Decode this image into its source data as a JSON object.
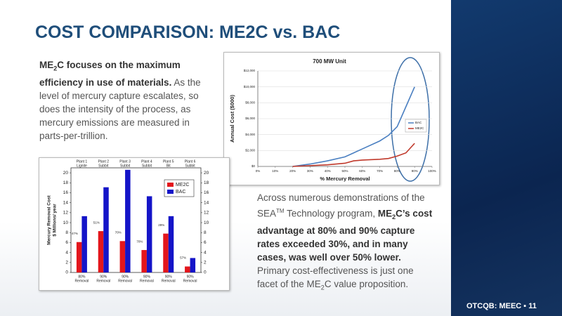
{
  "title": "COST COMPARISON: ME2C vs. BAC",
  "intro": [
    {
      "text": "ME",
      "style": "bold"
    },
    {
      "text": "2",
      "style": "bold-sub"
    },
    {
      "text": "C focuses on the maximum efficiency in use of materials.",
      "style": "bold"
    },
    {
      "text": " As the level of mercury capture escalates, so does the intensity of the process, as mercury emissions are measured in parts-per-trillion.",
      "style": "normal"
    }
  ],
  "summary": [
    {
      "text": "Across numerous demonstrations of the SEA",
      "style": "normal"
    },
    {
      "text": "TM",
      "style": "sup"
    },
    {
      "text": " Technology program, ",
      "style": "normal"
    },
    {
      "text": "ME",
      "style": "bold"
    },
    {
      "text": "2",
      "style": "bold-sub"
    },
    {
      "text": "C’s cost advantage at 80% and 90% capture rates exceeded 30%, and in many cases, was well over 50% lower.",
      "style": "bold"
    },
    {
      "text": " Primary cost-effectiveness is just one facet of the ME",
      "style": "normal"
    },
    {
      "text": "2",
      "style": "sub"
    },
    {
      "text": "C value proposition.",
      "style": "normal"
    }
  ],
  "footer": {
    "ticker": "OTCQB: MEEC",
    "page": "11"
  },
  "chart_data": [
    {
      "type": "line",
      "title": "700 MW Unit",
      "xlabel": "% Mercury Removal",
      "ylabel": "Annual Cost ($000)",
      "x": [
        20,
        30,
        40,
        50,
        55,
        60,
        70,
        75,
        80,
        85,
        90
      ],
      "series": [
        {
          "name": "BAC",
          "color": "#4a7fc1",
          "values": [
            0,
            300,
            700,
            1200,
            1700,
            2200,
            3200,
            3900,
            5000,
            7500,
            10000
          ]
        },
        {
          "name": "ME2C",
          "color": "#c0392b",
          "values": [
            0,
            100,
            200,
            400,
            700,
            800,
            900,
            1000,
            1300,
            1700,
            2900
          ]
        }
      ],
      "xlim": [
        0,
        100
      ],
      "xticks": [
        {
          "value": 0,
          "label": "0%"
        },
        {
          "value": 10,
          "label": "10%"
        },
        {
          "value": 20,
          "label": "20%"
        },
        {
          "value": 30,
          "label": "30%"
        },
        {
          "value": 40,
          "label": "40%"
        },
        {
          "value": 50,
          "label": "50%"
        },
        {
          "value": 60,
          "label": "60%"
        },
        {
          "value": 70,
          "label": "70%"
        },
        {
          "value": 80,
          "label": "80%"
        },
        {
          "value": 90,
          "label": "90%"
        },
        {
          "value": 100,
          "label": "100%"
        }
      ],
      "ylim": [
        0,
        12000
      ],
      "yticks": [
        {
          "value": 0,
          "label": "$0"
        },
        {
          "value": 2000,
          "label": "$2,000"
        },
        {
          "value": 4000,
          "label": "$4,000"
        },
        {
          "value": 6000,
          "label": "$6,000"
        },
        {
          "value": 8000,
          "label": "$8,000"
        },
        {
          "value": 10000,
          "label": "$10,000"
        },
        {
          "value": 12000,
          "label": "$12,000"
        }
      ],
      "grid": true
    },
    {
      "type": "bar",
      "categories": [
        "Plant 1",
        "Plant 2",
        "Plant 3",
        "Plant 4",
        "Plant 5",
        "Plant 6"
      ],
      "coal_types": [
        "Lignite",
        "Subbit",
        "Subbit",
        "Subbit",
        "Bit",
        "Subbit"
      ],
      "removal_rates": [
        "80%",
        "90%",
        "90%",
        "90%",
        "90%",
        "90%"
      ],
      "removal_word": "Removal",
      "ylabel": [
        "Mercury Removal Cost",
        "$ Millions/ year"
      ],
      "series": [
        {
          "name": "ME2C",
          "color": "#e3161c",
          "values": [
            6.1,
            8.3,
            6.3,
            4.5,
            7.8,
            1.2
          ]
        },
        {
          "name": "BAC",
          "color": "#1414c8",
          "values": [
            11.3,
            17.1,
            20.6,
            15.3,
            11.3,
            2.9
          ]
        }
      ],
      "savings_labels": [
        "47%",
        "51%",
        "70%",
        "70%",
        "29%",
        "57%"
      ],
      "ylim": [
        0,
        21
      ],
      "yticks": [
        0,
        2,
        4,
        6,
        8,
        10,
        12,
        14,
        16,
        18,
        20
      ],
      "y2lim": [
        0,
        21
      ],
      "y2ticks": [
        0,
        2,
        4,
        6,
        8,
        10,
        12,
        14,
        16,
        18,
        20
      ]
    }
  ]
}
